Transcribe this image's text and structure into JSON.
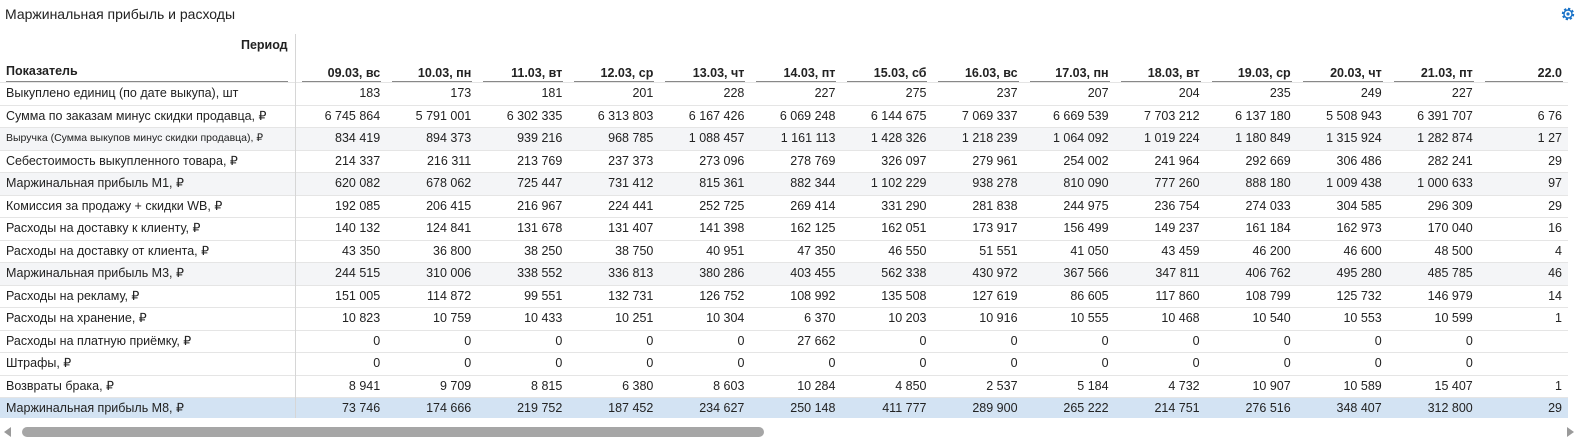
{
  "title": "Маржинальная прибыль и расходы",
  "icons": {
    "settings": "gear-icon",
    "accent": "#1a73c8"
  },
  "header": {
    "period_label": "Период",
    "indicator_label": "Показатель",
    "dates": [
      "09.03, вс",
      "10.03, пн",
      "11.03, вт",
      "12.03, ср",
      "13.03, чт",
      "14.03, пт",
      "15.03, сб",
      "16.03, вс",
      "17.03, пн",
      "18.03, вт",
      "19.03, ср",
      "20.03, чт",
      "21.03, пт",
      "22.0"
    ]
  },
  "rows": [
    {
      "label": "Выкуплено единиц (по дате выкупа), шт",
      "values": [
        "183",
        "173",
        "181",
        "201",
        "228",
        "227",
        "275",
        "237",
        "207",
        "204",
        "235",
        "249",
        "227",
        ""
      ]
    },
    {
      "label": "Сумма по заказам минус скидки продавца, ₽",
      "values": [
        "6 745 864",
        "5 791 001",
        "6 302 335",
        "6 313 803",
        "6 167 426",
        "6 069 248",
        "6 144 675",
        "7 069 337",
        "6 669 539",
        "7 703 212",
        "6 137 180",
        "5 508 943",
        "6 391 707",
        "6 76"
      ]
    },
    {
      "label": "Выручка (Сумма выкупов минус скидки продавца), ₽",
      "values": [
        "834 419",
        "894 373",
        "939 216",
        "968 785",
        "1 088 457",
        "1 161 113",
        "1 428 326",
        "1 218 239",
        "1 064 092",
        "1 019 224",
        "1 180 849",
        "1 315 924",
        "1 282 874",
        "1 27"
      ]
    },
    {
      "label": "Себестоимость выкупленного товара, ₽",
      "values": [
        "214 337",
        "216 311",
        "213 769",
        "237 373",
        "273 096",
        "278 769",
        "326 097",
        "279 961",
        "254 002",
        "241 964",
        "292 669",
        "306 486",
        "282 241",
        "29"
      ]
    },
    {
      "label": "Маржинальная прибыль М1, ₽",
      "values": [
        "620 082",
        "678 062",
        "725 447",
        "731 412",
        "815 361",
        "882 344",
        "1 102 229",
        "938 278",
        "810 090",
        "777 260",
        "888 180",
        "1 009 438",
        "1 000 633",
        "97"
      ]
    },
    {
      "label": "Комиссия за продажу + скидки WB, ₽",
      "values": [
        "192 085",
        "206 415",
        "216 967",
        "224 441",
        "252 725",
        "269 414",
        "331 290",
        "281 838",
        "244 975",
        "236 754",
        "274 033",
        "304 585",
        "296 309",
        "29"
      ]
    },
    {
      "label": "Расходы на доставку к клиенту, ₽",
      "values": [
        "140 132",
        "124 841",
        "131 678",
        "131 407",
        "141 398",
        "162 125",
        "162 051",
        "173 917",
        "156 499",
        "149 237",
        "161 184",
        "162 973",
        "170 040",
        "16"
      ]
    },
    {
      "label": "Расходы на доставку от клиента, ₽",
      "values": [
        "43 350",
        "36 800",
        "38 250",
        "38 750",
        "40 951",
        "47 350",
        "46 550",
        "51 551",
        "41 050",
        "43 459",
        "46 200",
        "46 600",
        "48 500",
        "4"
      ]
    },
    {
      "label": "Маржинальная прибыль М3, ₽",
      "values": [
        "244 515",
        "310 006",
        "338 552",
        "336 813",
        "380 286",
        "403 455",
        "562 338",
        "430 972",
        "367 566",
        "347 811",
        "406 762",
        "495 280",
        "485 785",
        "46"
      ]
    },
    {
      "label": "Расходы на рекламу, ₽",
      "values": [
        "151 005",
        "114 872",
        "99 551",
        "132 731",
        "126 752",
        "108 992",
        "135 508",
        "127 619",
        "86 605",
        "117 860",
        "108 799",
        "125 732",
        "146 979",
        "14"
      ]
    },
    {
      "label": "Расходы на хранение, ₽",
      "values": [
        "10 823",
        "10 759",
        "10 433",
        "10 251",
        "10 304",
        "6 370",
        "10 203",
        "10 916",
        "10 555",
        "10 468",
        "10 540",
        "10 553",
        "10 599",
        "1"
      ]
    },
    {
      "label": "Расходы на платную приёмку, ₽",
      "values": [
        "0",
        "0",
        "0",
        "0",
        "0",
        "27 662",
        "0",
        "0",
        "0",
        "0",
        "0",
        "0",
        "0",
        ""
      ]
    },
    {
      "label": "Штрафы, ₽",
      "values": [
        "0",
        "0",
        "0",
        "0",
        "0",
        "0",
        "0",
        "0",
        "0",
        "0",
        "0",
        "0",
        "0",
        ""
      ]
    },
    {
      "label": "Возвраты брака, ₽",
      "values": [
        "8 941",
        "9 709",
        "8 815",
        "6 380",
        "8 603",
        "10 284",
        "4 850",
        "2 537",
        "5 184",
        "4 732",
        "10 907",
        "10 589",
        "15 407",
        "1"
      ]
    },
    {
      "label": "Маржинальная прибыль М8, ₽",
      "values": [
        "73 746",
        "174 666",
        "219 752",
        "187 452",
        "234 627",
        "250 148",
        "411 777",
        "289 900",
        "265 222",
        "214 751",
        "276 516",
        "348 407",
        "312 800",
        "29"
      ]
    }
  ],
  "row_styles": [
    "plain",
    "plain",
    "alt",
    "plain",
    "alt",
    "plain",
    "plain",
    "plain",
    "alt",
    "plain",
    "plain",
    "plain",
    "plain",
    "plain",
    "highlight"
  ],
  "small_label_rows": [
    2
  ],
  "scrollbar": {
    "thumb_color": "#a6a6a6"
  }
}
